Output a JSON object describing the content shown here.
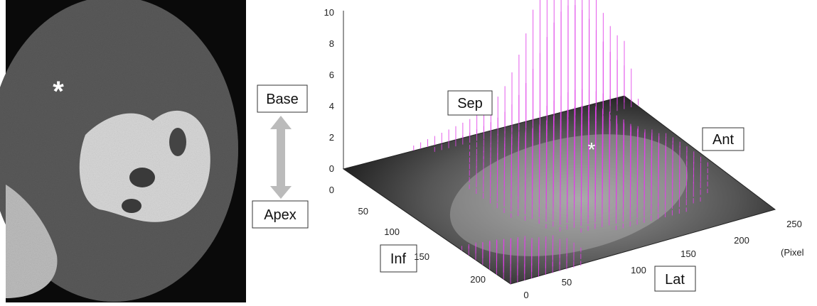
{
  "left_panel": {
    "marker": "*"
  },
  "arrow": {
    "top": "Base",
    "bottom": "Apex"
  },
  "plot": {
    "z_ticks": [
      0,
      2,
      4,
      6,
      8,
      10
    ],
    "depth_ticks": [
      0,
      50,
      100,
      150,
      200
    ],
    "width_ticks": [
      0,
      50,
      100,
      150,
      200,
      250
    ],
    "unit_label": "(Pixel",
    "labels": {
      "sep": "Sep",
      "ant": "Ant",
      "inf": "Inf",
      "lat": "Lat"
    },
    "marker": "*"
  }
}
